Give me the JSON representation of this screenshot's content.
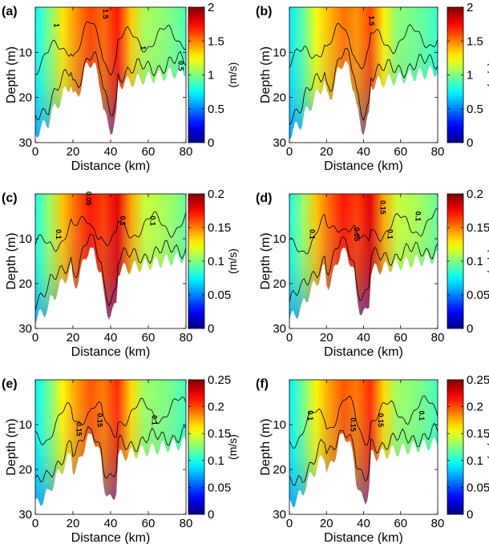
{
  "chart_data": [
    {
      "type": "heatmap",
      "panel_label": "(a)",
      "xlabel": "Distance (km)",
      "ylabel": "Depth (m)",
      "xlim": [
        0,
        80
      ],
      "ylim": [
        30,
        0
      ],
      "xticks": [
        "0",
        "20",
        "40",
        "60",
        "80"
      ],
      "yticks": [
        "10",
        "20",
        "30"
      ],
      "colorbar": {
        "label": "(m/s)",
        "range": [
          0,
          2
        ],
        "ticks": [
          "0",
          "0.5",
          "1",
          "1.5",
          "2"
        ]
      },
      "contour_labels": [
        {
          "text": "1",
          "x": 10,
          "y": 4
        },
        {
          "text": "1.5",
          "x": 36,
          "y": 1.5
        },
        {
          "text": "1",
          "x": 56,
          "y": 9
        },
        {
          "text": "0.5",
          "x": 76,
          "y": 13
        }
      ],
      "peak_value": 1.8
    },
    {
      "type": "heatmap",
      "panel_label": "(b)",
      "xlabel": "Distance (km)",
      "ylabel": "Depth (m)",
      "xlim": [
        0,
        80
      ],
      "ylim": [
        30,
        0
      ],
      "xticks": [
        "0",
        "20",
        "40",
        "60",
        "80"
      ],
      "yticks": [
        "10",
        "20",
        "30"
      ],
      "colorbar": {
        "label": "(m/s)",
        "range": [
          0,
          2
        ],
        "ticks": [
          "0",
          "0.5",
          "1",
          "1.5",
          "2"
        ]
      },
      "contour_labels": [
        {
          "text": "1.5",
          "x": 43,
          "y": 3
        }
      ],
      "peak_value": 1.7
    },
    {
      "type": "heatmap",
      "panel_label": "(c)",
      "xlabel": "Distance (km)",
      "ylabel": "Depth (m)",
      "xlim": [
        0,
        80
      ],
      "ylim": [
        30,
        0
      ],
      "xticks": [
        "0",
        "20",
        "40",
        "60",
        "80"
      ],
      "yticks": [
        "10",
        "20",
        "30"
      ],
      "colorbar": {
        "label": "(m/s)",
        "range": [
          0,
          0.2
        ],
        "ticks": [
          "0",
          "0.05",
          "0.1",
          "0.15",
          "0.2"
        ]
      },
      "contour_labels": [
        {
          "text": "0.1",
          "x": 11,
          "y": 9
        },
        {
          "text": "0.05",
          "x": 27,
          "y": 1
        },
        {
          "text": "0.1",
          "x": 45,
          "y": 6
        },
        {
          "text": "0.1",
          "x": 61,
          "y": 6
        }
      ],
      "peak_value": 0.19
    },
    {
      "type": "heatmap",
      "panel_label": "(d)",
      "xlabel": "Distance (km)",
      "ylabel": "Depth (m)",
      "xlim": [
        0,
        80
      ],
      "ylim": [
        30,
        0
      ],
      "xticks": [
        "0",
        "20",
        "40",
        "60",
        "80"
      ],
      "yticks": [
        "10",
        "20",
        "30"
      ],
      "colorbar": {
        "label": "(m/s)",
        "range": [
          0,
          0.2
        ],
        "ticks": [
          "0",
          "0.05",
          "0.1",
          "0.15",
          "0.2"
        ]
      },
      "contour_labels": [
        {
          "text": "0.1",
          "x": 11,
          "y": 9
        },
        {
          "text": "0.05",
          "x": 35,
          "y": 9
        },
        {
          "text": "0.15",
          "x": 49,
          "y": 3
        },
        {
          "text": "0.1",
          "x": 53,
          "y": 9
        },
        {
          "text": "0.1",
          "x": 68,
          "y": 5
        }
      ],
      "peak_value": 0.19
    },
    {
      "type": "heatmap",
      "panel_label": "(e)",
      "xlabel": "Distance (km)",
      "ylabel": "Depth (m)",
      "xlim": [
        0,
        80
      ],
      "ylim": [
        30,
        0
      ],
      "xticks": [
        "0",
        "20",
        "40",
        "60",
        "80"
      ],
      "yticks": [
        "10",
        "20",
        "30"
      ],
      "colorbar": {
        "label": "(m/s)",
        "range": [
          0,
          0.25
        ],
        "ticks": [
          "0",
          "0.05",
          "0.1",
          "0.15",
          "0.2",
          "0.25"
        ]
      },
      "contour_labels": [
        {
          "text": "0.15",
          "x": 22,
          "y": 11
        },
        {
          "text": "0.15",
          "x": 33,
          "y": 9
        },
        {
          "text": "0.1",
          "x": 62,
          "y": 9
        }
      ],
      "peak_value": 0.22
    },
    {
      "type": "heatmap",
      "panel_label": "(f)",
      "xlabel": "Distance (km)",
      "ylabel": "Depth (m)",
      "xlim": [
        0,
        80
      ],
      "ylim": [
        30,
        0
      ],
      "xticks": [
        "0",
        "20",
        "40",
        "60",
        "80"
      ],
      "yticks": [
        "10",
        "20",
        "30"
      ],
      "colorbar": {
        "label": "(m/s)",
        "range": [
          0,
          0.25
        ],
        "ticks": [
          "0",
          "0.05",
          "0.1",
          "0.15",
          "0.2",
          "0.25"
        ]
      },
      "contour_labels": [
        {
          "text": "0.1",
          "x": 10,
          "y": 8
        },
        {
          "text": "0.15",
          "x": 33,
          "y": 10
        },
        {
          "text": "0.15",
          "x": 48,
          "y": 9
        },
        {
          "text": "0.1",
          "x": 70,
          "y": 8
        }
      ],
      "peak_value": 0.22
    }
  ]
}
